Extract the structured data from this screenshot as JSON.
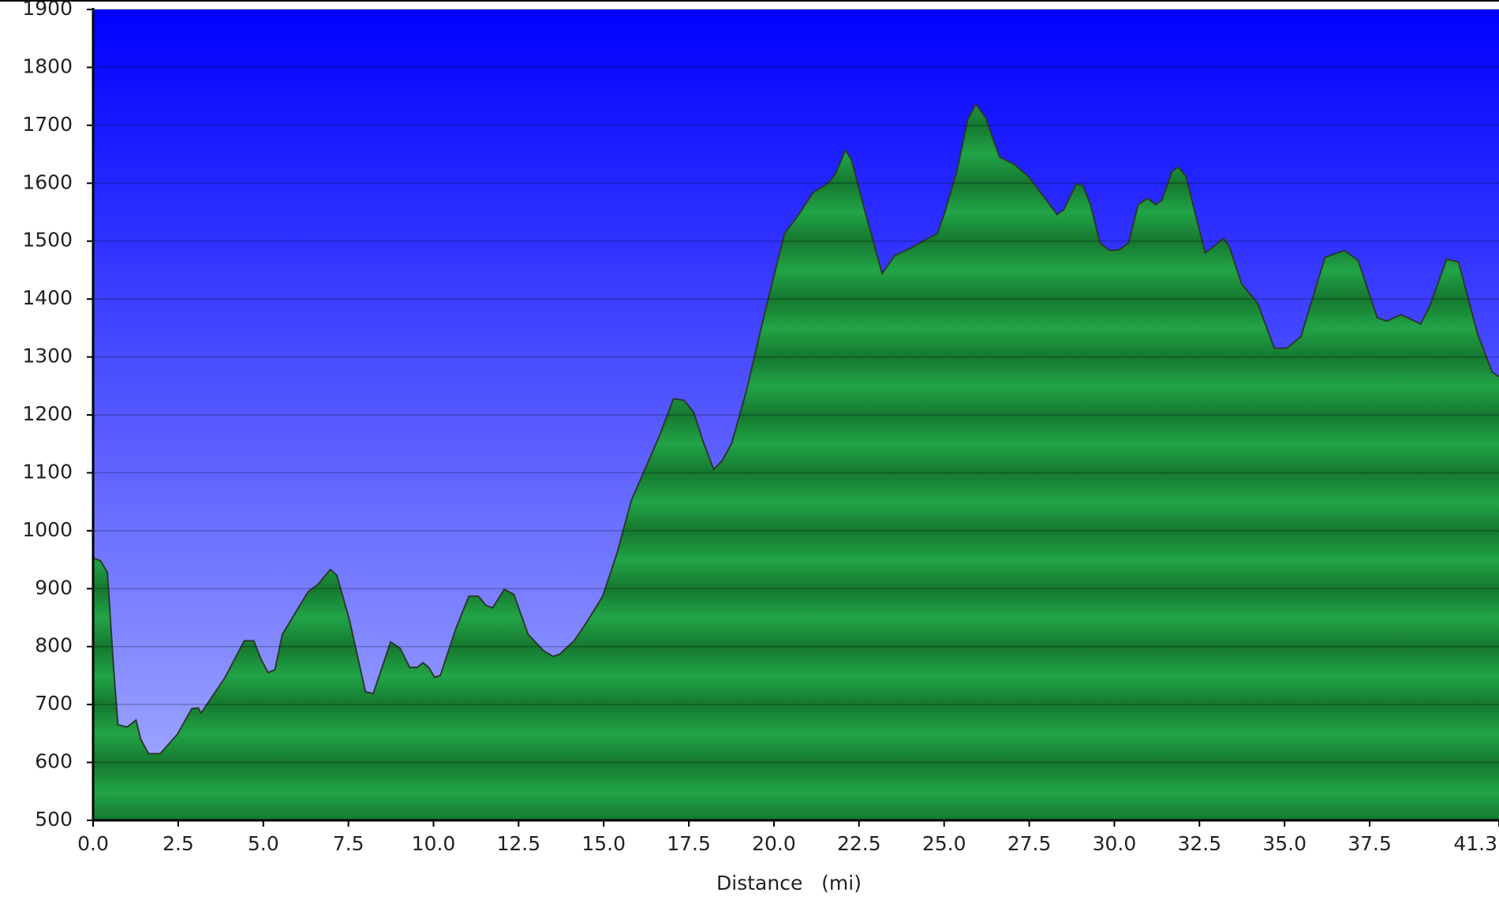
{
  "chart_data": {
    "type": "area",
    "xlabel": "Distance   (mi)",
    "color": "#22a447",
    "grid": true,
    "xlim": [
      0,
      41.3
    ],
    "ylim": [
      500,
      1900
    ],
    "xticks": [
      {
        "value": 0,
        "label": "0.0"
      },
      2.5,
      {
        "value": 5,
        "label": "5.0"
      },
      7.5,
      {
        "value": 10,
        "label": "10.0"
      },
      12.5,
      {
        "value": 15,
        "label": "15.0"
      },
      17.5,
      {
        "value": 20,
        "label": "20.0"
      },
      22.5,
      {
        "value": 25,
        "label": "25.0"
      },
      27.5,
      {
        "value": 30,
        "label": "30.0"
      },
      32.5,
      {
        "value": 35,
        "label": "35.0"
      },
      37.5,
      41.3
    ],
    "yticks": [
      500,
      600,
      700,
      800,
      900,
      1000,
      1100,
      1200,
      1300,
      1400,
      1500,
      1600,
      1700,
      1800,
      1900
    ],
    "x": [
      0,
      0.22,
      0.42,
      0.6,
      0.73,
      1.0,
      1.26,
      1.4,
      1.63,
      1.97,
      2.47,
      2.9,
      3.09,
      3.17,
      3.88,
      4.44,
      4.72,
      4.92,
      5.14,
      5.34,
      5.56,
      5.98,
      6.32,
      6.6,
      6.97,
      7.16,
      7.53,
      8.0,
      8.23,
      8.74,
      9.02,
      9.3,
      9.52,
      9.69,
      9.86,
      10.03,
      10.2,
      10.65,
      11.04,
      11.32,
      11.54,
      11.74,
      12.08,
      12.36,
      12.78,
      13.23,
      13.51,
      13.71,
      14.13,
      14.49,
      14.97,
      15.39,
      15.81,
      16.15,
      16.66,
      17.05,
      17.36,
      17.64,
      17.92,
      18.23,
      18.48,
      18.76,
      19.19,
      19.75,
      20.31,
      20.73,
      21.15,
      21.57,
      21.8,
      22.1,
      22.28,
      22.7,
      23.18,
      23.54,
      24.02,
      24.38,
      24.8,
      25.0,
      25.37,
      25.7,
      25.93,
      26.21,
      26.63,
      27.05,
      27.47,
      27.9,
      28.32,
      28.51,
      28.88,
      29.07,
      29.3,
      29.58,
      29.86,
      30.14,
      30.42,
      30.7,
      30.98,
      31.21,
      31.4,
      31.69,
      31.88,
      32.1,
      32.67,
      32.95,
      33.2,
      33.37,
      33.74,
      34.21,
      34.7,
      35.06,
      35.48,
      36.19,
      36.75,
      37.16,
      37.72,
      38.0,
      38.43,
      39.0,
      39.28,
      39.76,
      40.11,
      40.67,
      41.1,
      41.3
    ],
    "values": [
      953,
      948,
      928,
      764,
      665,
      661,
      673,
      640,
      615,
      615,
      648,
      693,
      694,
      685,
      747,
      810,
      810,
      780,
      755,
      760,
      821,
      862,
      895,
      907,
      933,
      923,
      846,
      722,
      719,
      808,
      797,
      764,
      764,
      772,
      764,
      747,
      750,
      830,
      887,
      887,
      871,
      867,
      899,
      890,
      821,
      793,
      783,
      787,
      810,
      841,
      887,
      961,
      1052,
      1098,
      1167,
      1228,
      1225,
      1205,
      1154,
      1106,
      1121,
      1151,
      1241,
      1381,
      1513,
      1546,
      1584,
      1599,
      1615,
      1657,
      1640,
      1546,
      1444,
      1475,
      1488,
      1500,
      1513,
      1546,
      1620,
      1711,
      1736,
      1714,
      1645,
      1633,
      1612,
      1579,
      1546,
      1554,
      1599,
      1596,
      1563,
      1497,
      1484,
      1485,
      1497,
      1563,
      1574,
      1563,
      1571,
      1620,
      1628,
      1612,
      1480,
      1492,
      1505,
      1492,
      1426,
      1393,
      1315,
      1315,
      1335,
      1472,
      1484,
      1467,
      1368,
      1362,
      1373,
      1357,
      1390,
      1469,
      1464,
      1340,
      1274,
      1266
    ]
  }
}
